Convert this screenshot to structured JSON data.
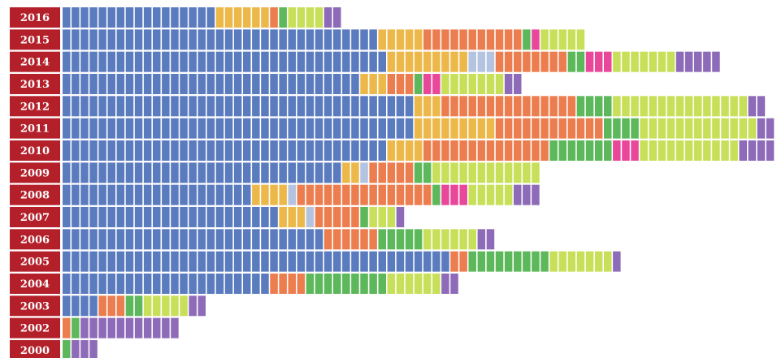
{
  "chart_data": {
    "type": "waffle",
    "categories": [
      "2016",
      "2015",
      "2014",
      "2013",
      "2012",
      "2011",
      "2010",
      "2009",
      "2008",
      "2007",
      "2006",
      "2005",
      "2004",
      "2003",
      "2002",
      "2000"
    ],
    "series": [
      {
        "color": "#5b7bbf",
        "values": [
          17,
          35,
          36,
          33,
          39,
          39,
          36,
          31,
          21,
          24,
          29,
          43,
          23,
          4,
          0,
          0
        ]
      },
      {
        "color": "#ecb84a",
        "values": [
          6,
          5,
          9,
          3,
          3,
          9,
          4,
          2,
          4,
          3,
          0,
          0,
          0,
          0,
          0,
          0
        ]
      },
      {
        "color": "#b3c3e0",
        "values": [
          0,
          0,
          3,
          0,
          0,
          0,
          0,
          1,
          1,
          1,
          0,
          0,
          0,
          0,
          0,
          0
        ]
      },
      {
        "color": "#ec7d4f",
        "values": [
          1,
          11,
          8,
          3,
          15,
          12,
          14,
          5,
          15,
          5,
          6,
          2,
          4,
          3,
          1,
          0
        ]
      },
      {
        "color": "#5cb85a",
        "values": [
          1,
          1,
          2,
          1,
          4,
          4,
          7,
          2,
          1,
          1,
          5,
          9,
          9,
          2,
          1,
          1
        ]
      },
      {
        "color": "#e8479a",
        "values": [
          0,
          1,
          3,
          2,
          0,
          0,
          3,
          0,
          3,
          0,
          0,
          0,
          0,
          0,
          0,
          0
        ]
      },
      {
        "color": "#c8df5a",
        "values": [
          4,
          5,
          7,
          7,
          15,
          13,
          11,
          12,
          5,
          3,
          6,
          7,
          6,
          5,
          0,
          0
        ]
      },
      {
        "color": "#8e6bb8",
        "values": [
          2,
          0,
          5,
          2,
          2,
          2,
          4,
          0,
          3,
          1,
          2,
          1,
          2,
          2,
          11,
          3
        ]
      }
    ]
  }
}
